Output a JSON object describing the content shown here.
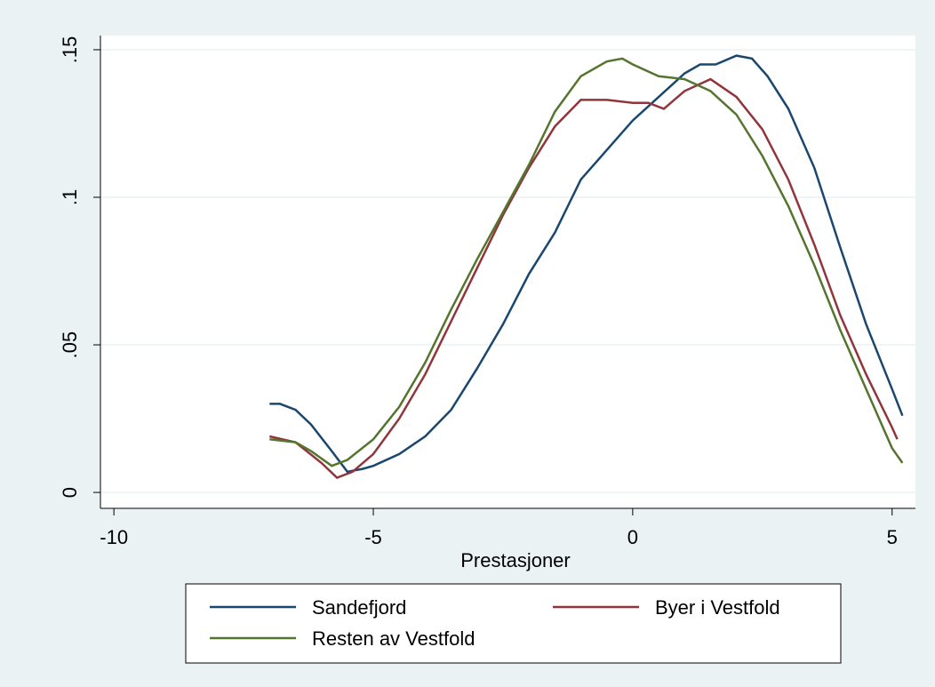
{
  "chart_data": {
    "type": "line",
    "x_label": "Prestasjoner",
    "xlim": [
      -10.26,
      5.45
    ],
    "xticks": [
      -10,
      -5,
      0,
      5
    ],
    "ylim": [
      -0.0054,
      0.1548
    ],
    "yticks": [
      0,
      {
        "value": 0.05,
        "label": ".05"
      },
      {
        "value": 0.1,
        "label": ".1"
      },
      {
        "value": 0.15,
        "label": ".15"
      }
    ],
    "grid": true,
    "legend_position": "bottom",
    "series": [
      {
        "name": "Sandefjord",
        "color": "#1a476f",
        "x": [
          -7,
          -6.8,
          -6.5,
          -6.2,
          -5.8,
          -5.5,
          -5.2,
          -5,
          -4.5,
          -4,
          -3.5,
          -3,
          -2.5,
          -2,
          -1.5,
          -1,
          -0.5,
          0,
          0.5,
          1,
          1.3,
          1.6,
          2,
          2.3,
          2.6,
          3,
          3.5,
          4,
          4.5,
          5,
          5.2
        ],
        "values": [
          0.03,
          0.03,
          0.028,
          0.023,
          0.014,
          0.007,
          0.008,
          0.009,
          0.013,
          0.019,
          0.028,
          0.042,
          0.057,
          0.074,
          0.088,
          0.106,
          0.116,
          0.126,
          0.134,
          0.142,
          0.145,
          0.145,
          0.148,
          0.147,
          0.141,
          0.13,
          0.11,
          0.083,
          0.057,
          0.035,
          0.026
        ]
      },
      {
        "name": "Byer i Vestfold",
        "color": "#90353b",
        "x": [
          -7,
          -6.5,
          -6,
          -5.7,
          -5.4,
          -5,
          -4.5,
          -4,
          -3.5,
          -3,
          -2.5,
          -2,
          -1.5,
          -1,
          -0.5,
          0,
          0.3,
          0.6,
          1,
          1.5,
          2,
          2.5,
          3,
          3.5,
          4,
          4.5,
          5,
          5.1
        ],
        "values": [
          0.019,
          0.017,
          0.01,
          0.005,
          0.007,
          0.013,
          0.025,
          0.04,
          0.058,
          0.076,
          0.094,
          0.11,
          0.124,
          0.133,
          0.133,
          0.132,
          0.132,
          0.13,
          0.136,
          0.14,
          0.134,
          0.123,
          0.106,
          0.084,
          0.06,
          0.04,
          0.022,
          0.018
        ]
      },
      {
        "name": "Resten av Vestfold",
        "color": "#55752f",
        "x": [
          -7,
          -6.5,
          -6.2,
          -5.8,
          -5.5,
          -5,
          -4.5,
          -4,
          -3.5,
          -3,
          -2.5,
          -2,
          -1.5,
          -1,
          -0.5,
          -0.2,
          0,
          0.5,
          1,
          1.5,
          2,
          2.5,
          3,
          3.5,
          4,
          4.5,
          5,
          5.2
        ],
        "values": [
          0.018,
          0.017,
          0.014,
          0.009,
          0.011,
          0.018,
          0.029,
          0.044,
          0.062,
          0.079,
          0.095,
          0.111,
          0.129,
          0.141,
          0.146,
          0.147,
          0.145,
          0.141,
          0.14,
          0.136,
          0.128,
          0.114,
          0.097,
          0.077,
          0.055,
          0.035,
          0.015,
          0.01
        ]
      }
    ]
  }
}
